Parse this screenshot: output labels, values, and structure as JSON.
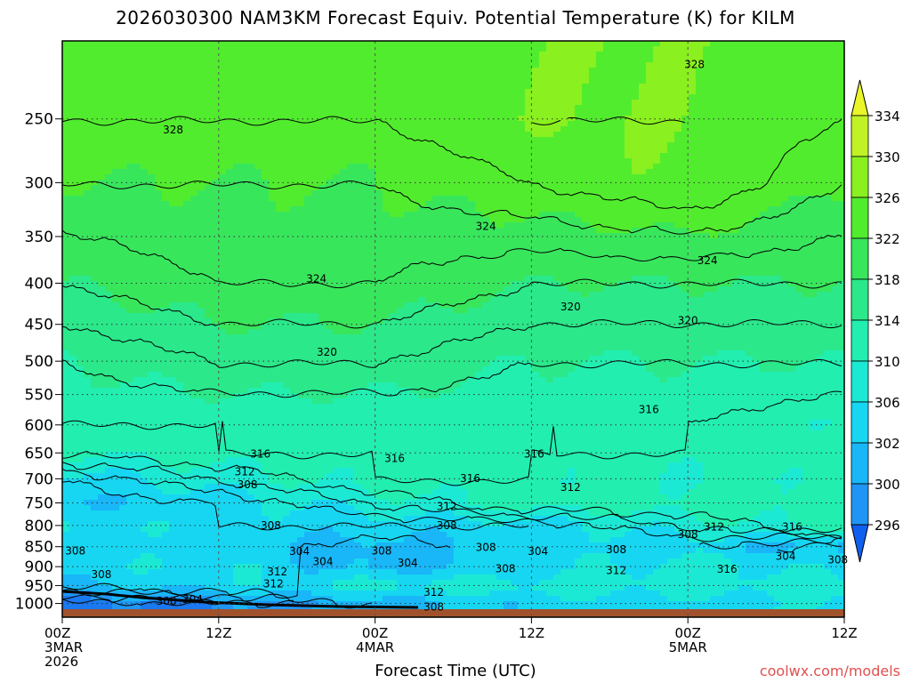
{
  "title": "2026030300 NAM3KM Forecast Equiv. Potential Temperature (K) for KILM",
  "credit": "coolwx.com/models",
  "chart_data": {
    "type": "heatmap",
    "title": "2026030300 NAM3KM Forecast Equiv. Potential Temperature (K) for KILM",
    "xlabel": "Forecast Time (UTC)",
    "ylabel": "",
    "y_log_pressure": true,
    "ylim_hpa": [
      1040,
      200
    ],
    "y_ticks": [
      250,
      300,
      350,
      400,
      450,
      500,
      550,
      600,
      650,
      700,
      750,
      800,
      850,
      900,
      950,
      1000
    ],
    "x_ticks": [
      {
        "line1": "00Z",
        "line2": "3MAR",
        "line3": "2026"
      },
      {
        "line1": "12Z",
        "line2": "",
        "line3": ""
      },
      {
        "line1": "00Z",
        "line2": "4MAR",
        "line3": ""
      },
      {
        "line1": "12Z",
        "line2": "",
        "line3": ""
      },
      {
        "line1": "00Z",
        "line2": "5MAR",
        "line3": ""
      },
      {
        "line1": "12Z",
        "line2": "",
        "line3": ""
      }
    ],
    "x_hours": [
      0,
      12,
      24,
      36,
      48,
      60
    ],
    "colorbar": {
      "ticks": [
        296,
        300,
        302,
        306,
        310,
        314,
        318,
        322,
        326,
        330,
        334
      ],
      "colors": [
        "#1060f0",
        "#1a78f0",
        "#1f96f5",
        "#19b6f8",
        "#17d6f2",
        "#1ce9d4",
        "#22eeb0",
        "#2be88a",
        "#38e65c",
        "#52ec2e",
        "#8af020",
        "#c0f226",
        "#eaf628"
      ]
    },
    "grid": true,
    "profiles": [
      {
        "hpa": 1000,
        "theta_e": [
          298,
          300,
          304,
          308,
          308,
          310
        ]
      },
      {
        "hpa": 950,
        "theta_e": [
          306,
          308,
          312,
          312,
          312,
          312
        ]
      },
      {
        "hpa": 900,
        "theta_e": [
          308,
          310,
          304,
          308,
          312,
          308
        ]
      },
      {
        "hpa": 850,
        "theta_e": [
          308,
          308,
          304,
          308,
          308,
          304
        ]
      },
      {
        "hpa": 800,
        "theta_e": [
          310,
          308,
          308,
          308,
          312,
          316
        ]
      },
      {
        "hpa": 750,
        "theta_e": [
          306,
          308,
          312,
          316,
          316,
          316
        ]
      },
      {
        "hpa": 700,
        "theta_e": [
          308,
          312,
          316,
          316,
          314,
          316
        ]
      },
      {
        "hpa": 650,
        "theta_e": [
          314,
          316,
          316,
          316,
          316,
          316
        ]
      },
      {
        "hpa": 600,
        "theta_e": [
          316,
          316,
          316,
          316,
          316,
          314
        ]
      },
      {
        "hpa": 500,
        "theta_e": [
          318,
          320,
          320,
          318,
          318,
          318
        ]
      },
      {
        "hpa": 400,
        "theta_e": [
          322,
          324,
          324,
          322,
          322,
          322
        ]
      },
      {
        "hpa": 300,
        "theta_e": [
          326,
          326,
          326,
          328,
          330,
          326
        ]
      },
      {
        "hpa": 250,
        "theta_e": [
          328,
          328,
          328,
          330,
          330,
          328
        ]
      }
    ],
    "contour_labels": [
      {
        "value": "328",
        "hours": 8.5,
        "hpa": 258
      },
      {
        "value": "328",
        "hours": 48.5,
        "hpa": 214
      },
      {
        "value": "324",
        "hours": 32.5,
        "hpa": 340
      },
      {
        "value": "324",
        "hours": 49.5,
        "hpa": 375
      },
      {
        "value": "324",
        "hours": 19.5,
        "hpa": 395
      },
      {
        "value": "320",
        "hours": 39,
        "hpa": 428
      },
      {
        "value": "320",
        "hours": 48,
        "hpa": 445
      },
      {
        "value": "320",
        "hours": 20.3,
        "hpa": 487
      },
      {
        "value": "316",
        "hours": 45,
        "hpa": 574
      },
      {
        "value": "316",
        "hours": 15.2,
        "hpa": 652
      },
      {
        "value": "316",
        "hours": 25.5,
        "hpa": 660
      },
      {
        "value": "316",
        "hours": 36.2,
        "hpa": 652
      },
      {
        "value": "316",
        "hours": 31.3,
        "hpa": 699
      },
      {
        "value": "316",
        "hours": 56,
        "hpa": 803
      },
      {
        "value": "316",
        "hours": 51,
        "hpa": 907
      },
      {
        "value": "312",
        "hours": 14,
        "hpa": 686
      },
      {
        "value": "312",
        "hours": 39,
        "hpa": 717
      },
      {
        "value": "312",
        "hours": 29.5,
        "hpa": 758
      },
      {
        "value": "312",
        "hours": 50,
        "hpa": 803
      },
      {
        "value": "312",
        "hours": 16.5,
        "hpa": 913
      },
      {
        "value": "312",
        "hours": 16.2,
        "hpa": 945
      },
      {
        "value": "312",
        "hours": 42.5,
        "hpa": 910
      },
      {
        "value": "312",
        "hours": 28.5,
        "hpa": 968
      },
      {
        "value": "308",
        "hours": 14.2,
        "hpa": 712
      },
      {
        "value": "308",
        "hours": 16,
        "hpa": 800
      },
      {
        "value": "308",
        "hours": 29.5,
        "hpa": 800
      },
      {
        "value": "308",
        "hours": 1,
        "hpa": 860
      },
      {
        "value": "308",
        "hours": 24.5,
        "hpa": 860
      },
      {
        "value": "308",
        "hours": 32.5,
        "hpa": 852
      },
      {
        "value": "308",
        "hours": 42.5,
        "hpa": 857
      },
      {
        "value": "308",
        "hours": 48,
        "hpa": 821
      },
      {
        "value": "308",
        "hours": 34,
        "hpa": 905
      },
      {
        "value": "308",
        "hours": 3,
        "hpa": 920
      },
      {
        "value": "308",
        "hours": 59.5,
        "hpa": 883
      },
      {
        "value": "308",
        "hours": 28.5,
        "hpa": 1010
      },
      {
        "value": "304",
        "hours": 18.2,
        "hpa": 862
      },
      {
        "value": "304",
        "hours": 36.5,
        "hpa": 862
      },
      {
        "value": "304",
        "hours": 55.5,
        "hpa": 874
      },
      {
        "value": "304",
        "hours": 26.5,
        "hpa": 890
      },
      {
        "value": "304",
        "hours": 20,
        "hpa": 887
      },
      {
        "value": "304",
        "hours": 10,
        "hpa": 989
      },
      {
        "value": "300",
        "hours": 8,
        "hpa": 993
      }
    ]
  }
}
